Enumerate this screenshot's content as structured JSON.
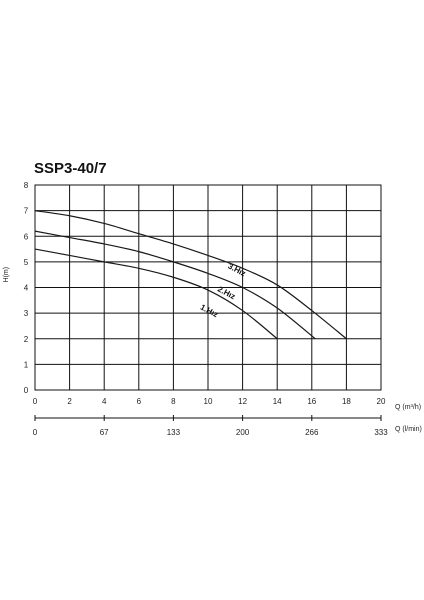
{
  "chart_data": {
    "type": "line",
    "title": "SSP3-40/7",
    "xlabel": "Q (m³/h)",
    "x2label": "Q (l/min)",
    "ylabel": "H(m)",
    "xlim": [
      0,
      20
    ],
    "ylim": [
      0,
      8
    ],
    "x_ticks": [
      0,
      2,
      4,
      6,
      8,
      10,
      12,
      14,
      16,
      18,
      20
    ],
    "y_ticks": [
      0,
      1,
      2,
      3,
      4,
      5,
      6,
      7,
      8
    ],
    "x2_ticks": [
      {
        "q": 0,
        "label": "0"
      },
      {
        "q": 4,
        "label": "67"
      },
      {
        "q": 8,
        "label": "133"
      },
      {
        "q": 12,
        "label": "200"
      },
      {
        "q": 16,
        "label": "266"
      },
      {
        "q": 20,
        "label": "333"
      }
    ],
    "grid": true,
    "series": [
      {
        "name": "3.Hız",
        "x": [
          0,
          2,
          4,
          6,
          8,
          10,
          12,
          14,
          16,
          18
        ],
        "y": [
          7.0,
          6.8,
          6.5,
          6.1,
          5.7,
          5.25,
          4.75,
          4.1,
          3.1,
          2.0
        ],
        "label_at": [
          11.6,
          4.6
        ]
      },
      {
        "name": "2.Hız",
        "x": [
          0,
          2,
          4,
          6,
          8,
          10,
          12,
          14,
          16.2
        ],
        "y": [
          6.2,
          5.95,
          5.7,
          5.4,
          5.0,
          4.55,
          4.0,
          3.2,
          2.0
        ],
        "label_at": [
          11.0,
          3.7
        ]
      },
      {
        "name": "1.Hız",
        "x": [
          0,
          2,
          4,
          6,
          8,
          10,
          12,
          14
        ],
        "y": [
          5.5,
          5.25,
          5.0,
          4.75,
          4.4,
          3.9,
          3.1,
          2.0
        ],
        "label_at": [
          10.0,
          3.0
        ]
      }
    ]
  }
}
